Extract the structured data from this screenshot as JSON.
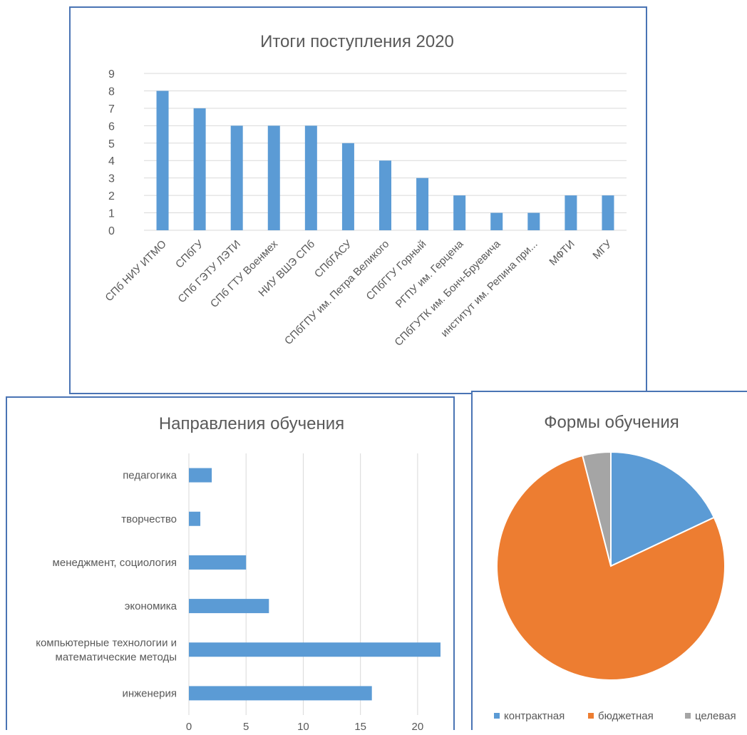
{
  "colors": {
    "bar": "#5b9bd5",
    "grid": "#d9d9d9",
    "text": "#595959",
    "border": "#4a74b4"
  },
  "chart_data": [
    {
      "type": "bar",
      "title": "Итоги поступления 2020",
      "categories": [
        "СПб НИУ ИТМО",
        "СПбГУ",
        "СПб ГЭТУ ЛЭТИ",
        "СПб ГТУ Военмех",
        "НИУ ВШЭ СПб",
        "СПбГАСУ",
        "СПбГПУ им. Петра Великого",
        "СПбГГУ Горный",
        "РГПУ им. Герцена",
        "СПбГУТК им. Бонч-Бруевича",
        "институт им. Репина при...",
        "МФТИ",
        "МГУ"
      ],
      "values": [
        8,
        7,
        6,
        6,
        6,
        5,
        4,
        3,
        2,
        1,
        1,
        2,
        2
      ],
      "ylim": [
        0,
        9
      ],
      "yticks": [
        "0",
        "1",
        "2",
        "3",
        "4",
        "5",
        "6",
        "7",
        "8",
        "9"
      ],
      "grid": true
    },
    {
      "type": "bar",
      "orientation": "horizontal",
      "title": "Направления обучения",
      "categories": [
        [
          "педагогика"
        ],
        [
          "творчество"
        ],
        [
          "менеджмент, социология"
        ],
        [
          "экономика"
        ],
        [
          "компьютерные технологии и",
          "математические методы"
        ],
        [
          "инженерия"
        ]
      ],
      "values": [
        2,
        1,
        5,
        7,
        22,
        16
      ],
      "xlim": [
        0,
        22.5
      ],
      "xticks": [
        "0",
        "5",
        "10",
        "15",
        "20"
      ],
      "grid": true
    },
    {
      "type": "pie",
      "title": "Формы обучения",
      "labels": [
        "контрактная",
        "бюджетная",
        "целевая"
      ],
      "values": [
        18,
        78,
        4
      ],
      "colors": [
        "#5b9bd5",
        "#ed7d31",
        "#a5a5a5"
      ],
      "legend": "bottom"
    }
  ]
}
